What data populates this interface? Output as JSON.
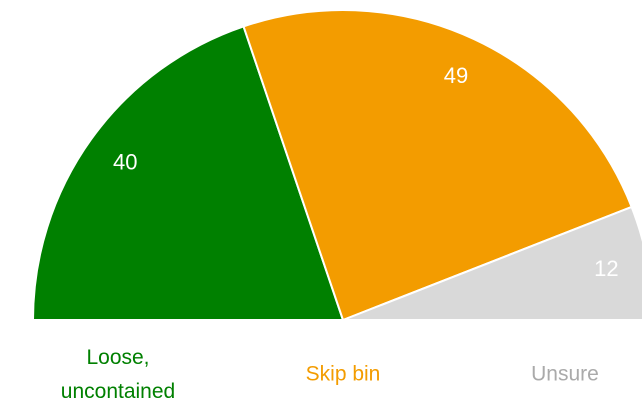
{
  "chart_data": {
    "type": "pie",
    "categories": [
      "Loose,\nuncontained",
      "Skip bin",
      "Unsure"
    ],
    "values": [
      40,
      49,
      12
    ],
    "colors": [
      "#008000",
      "#f39c00",
      "#d9d9d9"
    ],
    "label_colors": [
      "#008000",
      "#f39c00",
      "#aaaaaa"
    ]
  }
}
